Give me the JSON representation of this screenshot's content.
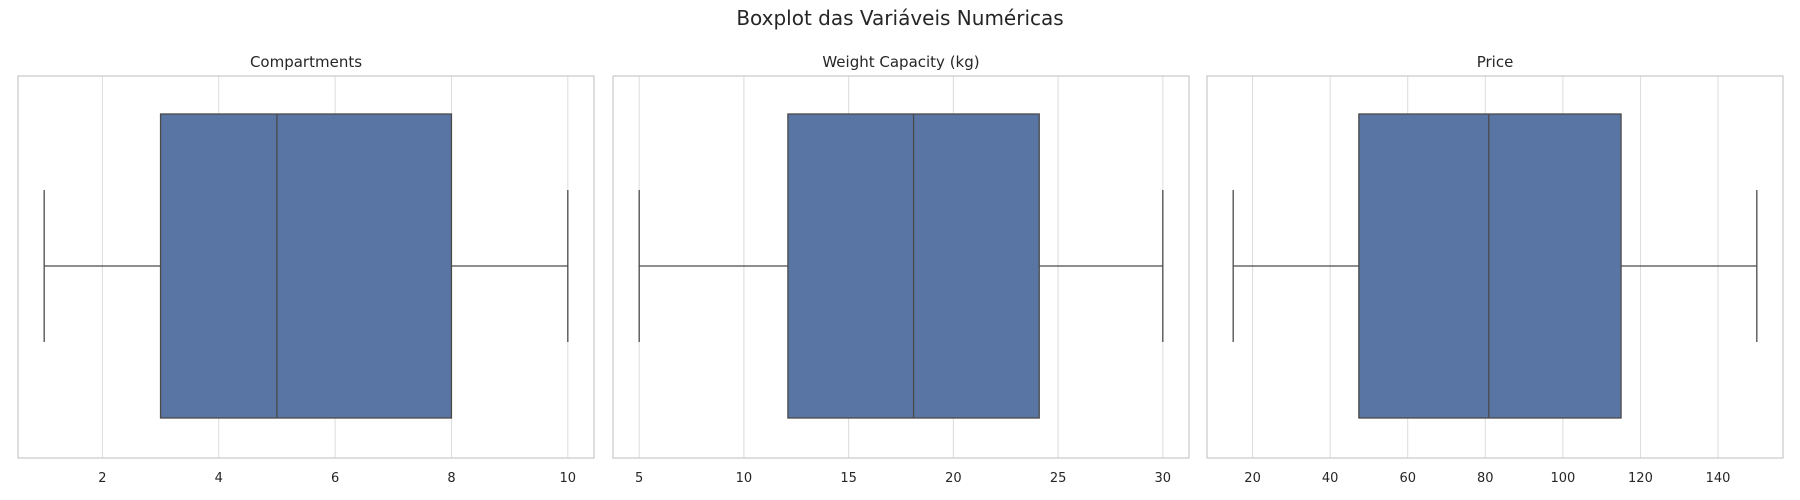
{
  "figure": {
    "title": "Boxplot das Variáveis Numéricas"
  },
  "colors": {
    "box_fill": "#5975a4",
    "line": "#4a4a4a",
    "grid": "#dcdcdc",
    "frame": "#cccccc"
  },
  "chart_data": [
    {
      "type": "boxplot",
      "title": "Compartments",
      "xlabel": "",
      "xlim": [
        0.55,
        10.45
      ],
      "xticks": [
        2,
        4,
        6,
        8,
        10
      ],
      "tick_labels": [
        "2",
        "4",
        "6",
        "8",
        "10"
      ],
      "stats": {
        "min": 1,
        "q1": 3,
        "median": 5,
        "q3": 8,
        "max": 10
      },
      "grid": true
    },
    {
      "type": "boxplot",
      "title": "Weight Capacity (kg)",
      "xlabel": "",
      "xlim": [
        3.75,
        31.25
      ],
      "xticks": [
        5,
        10,
        15,
        20,
        25,
        30
      ],
      "tick_labels": [
        "5",
        "10",
        "15",
        "20",
        "25",
        "30"
      ],
      "stats": {
        "min": 5,
        "q1": 12.1,
        "median": 18.1,
        "q3": 24.1,
        "max": 30
      },
      "grid": true
    },
    {
      "type": "boxplot",
      "title": "Price",
      "xlabel": "",
      "xlim": [
        8.25,
        156.75
      ],
      "xticks": [
        20,
        40,
        60,
        80,
        100,
        120,
        140
      ],
      "tick_labels": [
        "20",
        "40",
        "60",
        "80",
        "100",
        "120",
        "140"
      ],
      "stats": {
        "min": 15,
        "q1": 47.4,
        "median": 80.9,
        "q3": 115,
        "max": 150
      },
      "grid": true
    }
  ]
}
